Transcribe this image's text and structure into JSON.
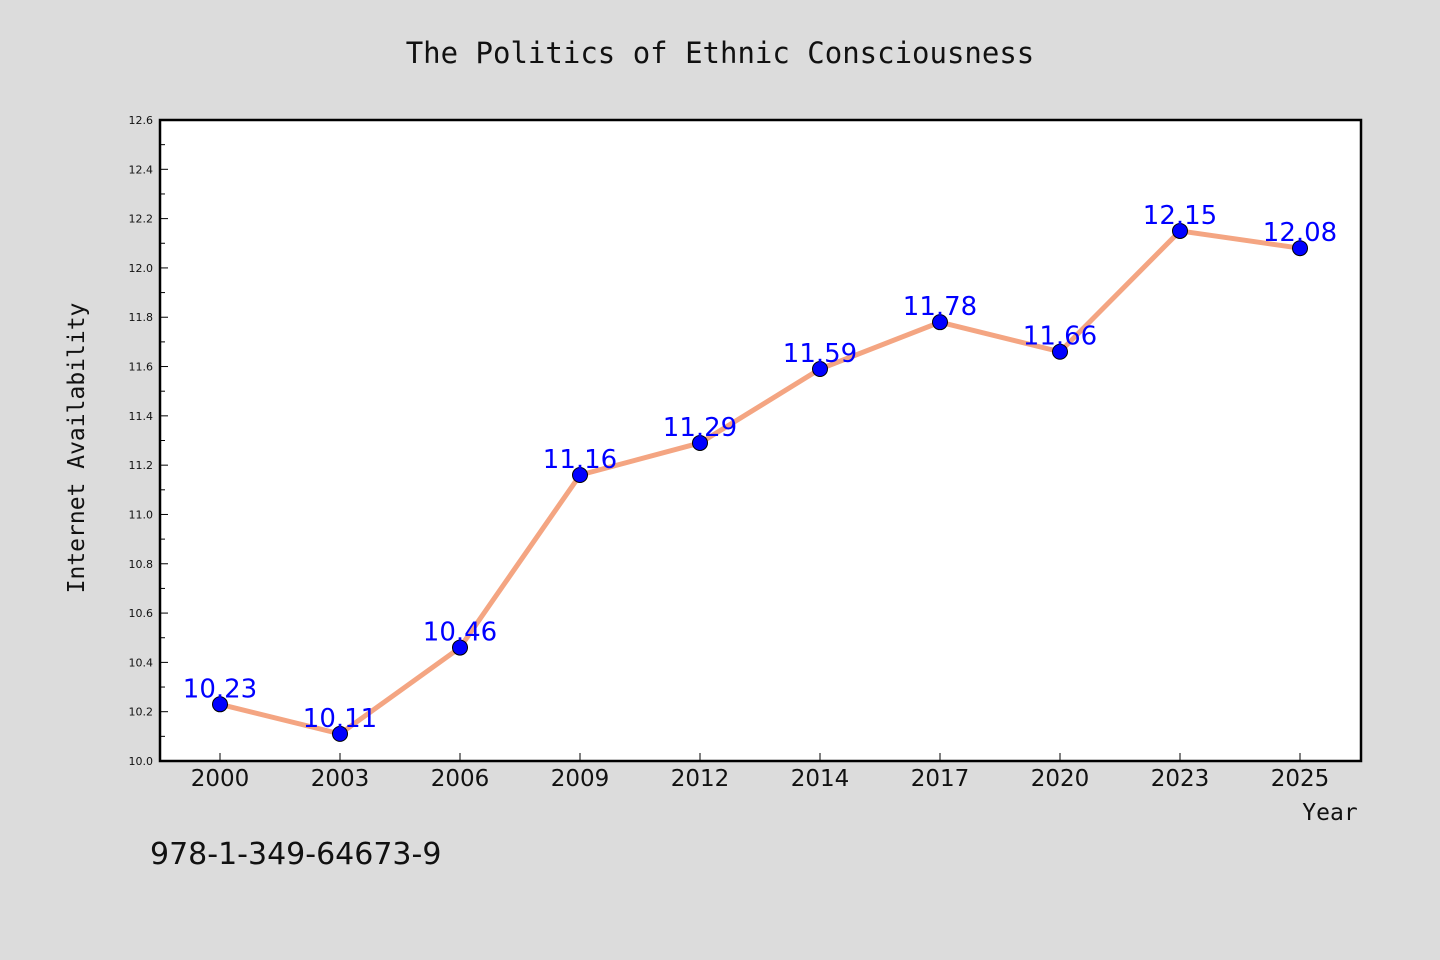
{
  "chart_data": {
    "type": "line",
    "title": "The Politics of Ethnic Consciousness",
    "xlabel": "Year",
    "ylabel": "Internet Availability",
    "categories": [
      "2000",
      "2003",
      "2006",
      "2009",
      "2012",
      "2014",
      "2017",
      "2020",
      "2023",
      "2025"
    ],
    "series": [
      {
        "values": [
          10.23,
          10.11,
          10.46,
          11.16,
          11.29,
          11.59,
          11.78,
          11.66,
          12.15,
          12.08
        ],
        "data_labels": [
          "10.23",
          "10.11",
          "10.46",
          "11.16",
          "11.29",
          "11.59",
          "11.78",
          "11.66",
          "12.15",
          "12.08"
        ],
        "line_color": "#f4a582",
        "marker_color": "#0000ff"
      }
    ],
    "ylim": [
      10.0,
      12.6
    ],
    "yticks": [
      "10.0",
      "10.2",
      "10.4",
      "10.6",
      "10.8",
      "11.0",
      "11.2",
      "11.4",
      "11.6",
      "11.8",
      "12.0",
      "12.2",
      "12.4",
      "12.6"
    ],
    "grid": false,
    "legend": "none",
    "background_color": "#dcdcdc",
    "plot_background_color": "#ffffff"
  },
  "footnote": "978-1-349-64673-9"
}
